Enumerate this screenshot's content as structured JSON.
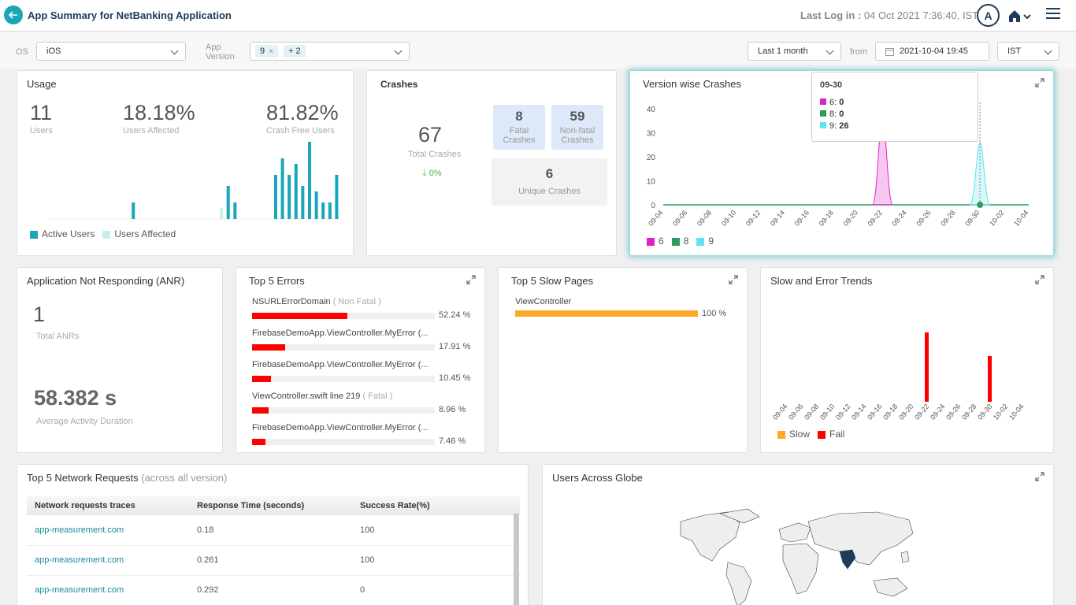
{
  "header": {
    "title": "App Summary for NetBanking Application",
    "last_login_label": "Last Log in :",
    "last_login_value": "04 Oct 2021 7:36:40, IST",
    "avatar_letter": "A"
  },
  "filters": {
    "os_label": "OS",
    "os_value": "iOS",
    "app_version_label_1": "App",
    "app_version_label_2": "Version",
    "version_tag": "9",
    "version_more": "+ 2",
    "period": "Last 1 month",
    "from_label": "from",
    "from_value": "2021-10-04 19:45",
    "timezone": "IST"
  },
  "usage": {
    "title": "Usage",
    "users_value": "11",
    "users_label": "Users",
    "affected_value": "18.18%",
    "affected_label": "Users Affected",
    "crash_free_value": "81.82%",
    "crash_free_label": "Crash Free Users",
    "legend_active": "Active Users",
    "legend_affected": "Users Affected",
    "active_color": "#1aa6b7",
    "affected_color": "#c9eeee"
  },
  "crashes": {
    "title": "Crashes",
    "total_value": "67",
    "total_label": "Total Crashes",
    "trend": "0%",
    "fatal_value": "8",
    "fatal_label_1": "Fatal",
    "fatal_label_2": "Crashes",
    "nonfatal_value": "59",
    "nonfatal_label_1": "Non-fatal",
    "nonfatal_label_2": "Crashes",
    "unique_value": "6",
    "unique_label": "Unique Crashes"
  },
  "version_crashes": {
    "title": "Version wise Crashes",
    "tooltip_date": "09-30",
    "tooltip_rows": [
      {
        "label": "6:",
        "value": "0",
        "color": "#e020c8"
      },
      {
        "label": "8:",
        "value": "0",
        "color": "#2a9d5c"
      },
      {
        "label": "9:",
        "value": "26",
        "color": "#5fe3f0"
      }
    ],
    "legend": [
      {
        "label": "6",
        "color": "#e020c8"
      },
      {
        "label": "8",
        "color": "#2a9d5c"
      },
      {
        "label": "9",
        "color": "#5fe3f0"
      }
    ]
  },
  "anr": {
    "title": "Application Not Responding (ANR)",
    "total_value": "1",
    "total_label": "Total ANRs",
    "duration_value": "58.382 s",
    "duration_label": "Average Activity Duration"
  },
  "top_errors": {
    "title": "Top 5 Errors",
    "items": [
      {
        "name": "NSURLErrorDomain",
        "type": "( Non Fatal )",
        "pct": 52.24,
        "pct_label": "52.24 %"
      },
      {
        "name": "FirebaseDemoApp.ViewController.MyError (...",
        "type": "",
        "pct": 17.91,
        "pct_label": "17.91 %"
      },
      {
        "name": "FirebaseDemoApp.ViewController.MyError (...",
        "type": "",
        "pct": 10.45,
        "pct_label": "10.45 %"
      },
      {
        "name": "ViewController.swift line 219",
        "type": "( Fatal )",
        "pct": 8.96,
        "pct_label": "8.96 %"
      },
      {
        "name": "FirebaseDemoApp.ViewController.MyError (...",
        "type": "",
        "pct": 7.46,
        "pct_label": "7.46 %"
      }
    ]
  },
  "slow_pages": {
    "title": "Top 5 Slow Pages",
    "items": [
      {
        "name": "ViewController",
        "pct": 100,
        "pct_label": "100 %"
      }
    ],
    "bar_color": "#ffa726"
  },
  "slow_error": {
    "title": "Slow and Error Trends",
    "legend_slow": "Slow",
    "legend_fail": "Fail",
    "slow_color": "#ffa726",
    "fail_color": "#ff0000"
  },
  "network": {
    "title": "Top 5 Network Requests",
    "subtitle": "(across all version)",
    "columns": [
      "Network requests traces",
      "Response Time (seconds)",
      "Success Rate(%)"
    ],
    "rows": [
      {
        "trace": "app-measurement.com",
        "time": "0.18",
        "rate": "100"
      },
      {
        "trace": "app-measurement.com",
        "time": "0.261",
        "rate": "100"
      },
      {
        "trace": "app-measurement.com",
        "time": "0.292",
        "rate": "0"
      }
    ]
  },
  "globe": {
    "title": "Users Across Globe"
  },
  "chart_data": [
    {
      "type": "bar",
      "title": "Usage",
      "series": [
        {
          "name": "Active Users",
          "values": [
            0,
            0,
            0,
            0,
            0,
            0,
            0,
            0,
            0,
            0,
            0,
            0,
            3,
            0,
            0,
            0,
            0,
            0,
            0,
            0,
            0,
            0,
            0,
            0,
            0,
            0,
            6,
            3,
            0,
            0,
            0,
            0,
            0,
            8,
            11,
            8,
            10,
            6,
            14,
            5,
            3,
            3,
            8
          ]
        },
        {
          "name": "Users Affected",
          "values": [
            0,
            0,
            0,
            0,
            0,
            0,
            0,
            0,
            0,
            0,
            0,
            0,
            0,
            0,
            0,
            0,
            0,
            0,
            0,
            0,
            0,
            0,
            0,
            0,
            0,
            2,
            0,
            0,
            0,
            0,
            0,
            0,
            0,
            0,
            0,
            0,
            2,
            0,
            0,
            0,
            0,
            0,
            0
          ]
        }
      ]
    },
    {
      "type": "area",
      "title": "Version wise Crashes",
      "categories": [
        "09-04",
        "09-06",
        "09-08",
        "09-10",
        "09-12",
        "09-14",
        "09-16",
        "09-18",
        "09-20",
        "09-22",
        "09-24",
        "09-26",
        "09-28",
        "09-30",
        "10-02",
        "10-04"
      ],
      "ylim": [
        0,
        40
      ],
      "yticks": [
        0,
        10,
        20,
        30,
        40
      ],
      "series": [
        {
          "name": "6",
          "points": [
            {
              "x": "09-22",
              "y": 38
            }
          ]
        },
        {
          "name": "8",
          "points": []
        },
        {
          "name": "9",
          "points": [
            {
              "x": "09-30",
              "y": 26
            }
          ]
        }
      ]
    },
    {
      "type": "bar",
      "title": "Slow and Error Trends",
      "categories": [
        "09-04",
        "09-06",
        "09-08",
        "09-10",
        "09-12",
        "09-14",
        "09-16",
        "09-18",
        "09-20",
        "09-22",
        "09-24",
        "09-26",
        "09-28",
        "09-30",
        "10-02",
        "10-04"
      ],
      "series": [
        {
          "name": "Slow",
          "points": []
        },
        {
          "name": "Fail",
          "points": [
            {
              "x": "09-22",
              "y": 1
            },
            {
              "x": "09-30",
              "y": 0.66
            }
          ]
        }
      ]
    }
  ]
}
